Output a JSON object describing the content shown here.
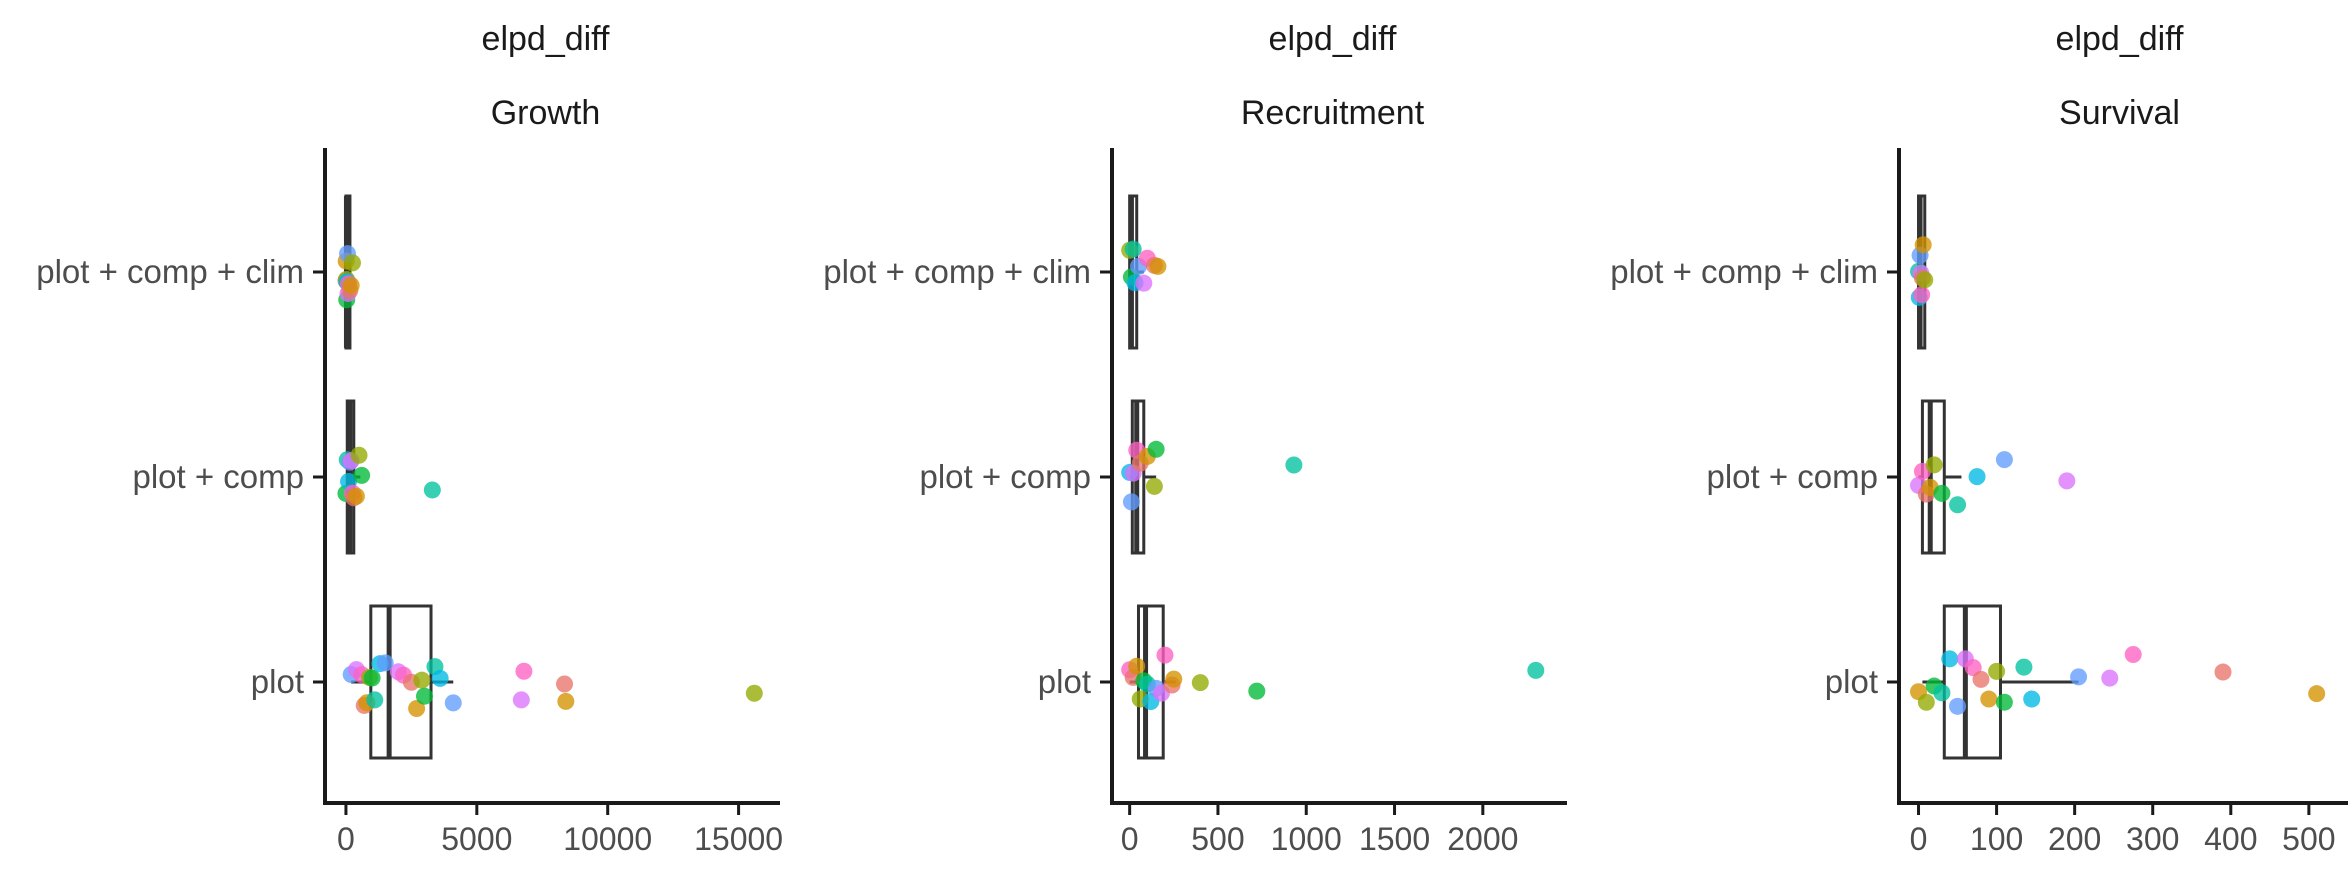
{
  "chart_data": [
    {
      "type": "boxplot",
      "strip": "elpd_diff",
      "title": "Growth",
      "categories": [
        "plot + comp + clim",
        "plot + comp",
        "plot"
      ],
      "x_ticks": [
        0,
        5000,
        10000,
        15000
      ],
      "xlim": [
        -800,
        16200
      ],
      "orientation": "horizontal",
      "boxes": [
        {
          "category": "plot + comp + clim",
          "q1": 0,
          "median": 20,
          "q3": 60,
          "whisker_low": 0,
          "whisker_high": 150
        },
        {
          "category": "plot + comp",
          "q1": 50,
          "median": 150,
          "q3": 300,
          "whisker_low": 0,
          "whisker_high": 550
        },
        {
          "category": "plot",
          "q1": 950,
          "median": 1650,
          "q3": 3250,
          "whisker_low": 200,
          "whisker_high": 4100
        }
      ],
      "points": {
        "plot + comp + clim": [
          0,
          10,
          20,
          30,
          40,
          50,
          60,
          80,
          100,
          150,
          200,
          250
        ],
        "plot + comp": [
          0,
          50,
          100,
          150,
          200,
          250,
          300,
          400,
          500,
          600,
          3300
        ],
        "plot": [
          200,
          400,
          600,
          700,
          800,
          900,
          1000,
          1100,
          1300,
          1500,
          2000,
          2200,
          2500,
          2700,
          2900,
          3000,
          3400,
          3600,
          4100,
          6700,
          6800,
          8350,
          8400,
          15600
        ]
      }
    },
    {
      "type": "boxplot",
      "strip": "elpd_diff",
      "title": "Recruitment",
      "categories": [
        "plot + comp + clim",
        "plot + comp",
        "plot"
      ],
      "x_ticks": [
        0,
        500,
        1000,
        1500,
        2000
      ],
      "xlim": [
        -100,
        2420
      ],
      "orientation": "horizontal",
      "boxes": [
        {
          "category": "plot + comp + clim",
          "q1": 0,
          "median": 10,
          "q3": 40,
          "whisker_low": 0,
          "whisker_high": 80
        },
        {
          "category": "plot + comp",
          "q1": 15,
          "median": 40,
          "q3": 80,
          "whisker_low": 0,
          "whisker_high": 150
        },
        {
          "category": "plot",
          "q1": 50,
          "median": 90,
          "q3": 190,
          "whisker_low": 0,
          "whisker_high": 260
        }
      ],
      "points": {
        "plot + comp + clim": [
          0,
          10,
          20,
          30,
          50,
          80,
          100,
          140,
          160
        ],
        "plot + comp": [
          0,
          10,
          20,
          40,
          60,
          100,
          140,
          150,
          930
        ],
        "plot": [
          0,
          20,
          40,
          60,
          80,
          100,
          120,
          150,
          180,
          200,
          240,
          250,
          400,
          720,
          2300
        ]
      }
    },
    {
      "type": "boxplot",
      "strip": "elpd_diff",
      "title": "Survival",
      "categories": [
        "plot + comp + clim",
        "plot + comp",
        "plot"
      ],
      "x_ticks": [
        0,
        100,
        200,
        300,
        400,
        500
      ],
      "xlim": [
        -25,
        545
      ],
      "orientation": "horizontal",
      "boxes": [
        {
          "category": "plot + comp + clim",
          "q1": 0,
          "median": 2,
          "q3": 8,
          "whisker_low": 0,
          "whisker_high": 10
        },
        {
          "category": "plot + comp",
          "q1": 5,
          "median": 15,
          "q3": 33,
          "whisker_low": 0,
          "whisker_high": 55
        },
        {
          "category": "plot",
          "q1": 33,
          "median": 60,
          "q3": 105,
          "whisker_low": 5,
          "whisker_high": 205
        }
      ],
      "points": {
        "plot + comp + clim": [
          0,
          1,
          2,
          3,
          4,
          5,
          6,
          8
        ],
        "plot + comp": [
          0,
          5,
          10,
          15,
          20,
          30,
          50,
          75,
          110,
          190
        ],
        "plot": [
          0,
          10,
          20,
          30,
          40,
          50,
          60,
          70,
          80,
          90,
          100,
          110,
          135,
          145,
          205,
          245,
          275,
          390,
          510
        ]
      }
    }
  ],
  "palette": [
    "#e8756a",
    "#d39200",
    "#93aa00",
    "#00ba38",
    "#00c19f",
    "#00b9e3",
    "#619cff",
    "#db72fb",
    "#ff61c3"
  ]
}
